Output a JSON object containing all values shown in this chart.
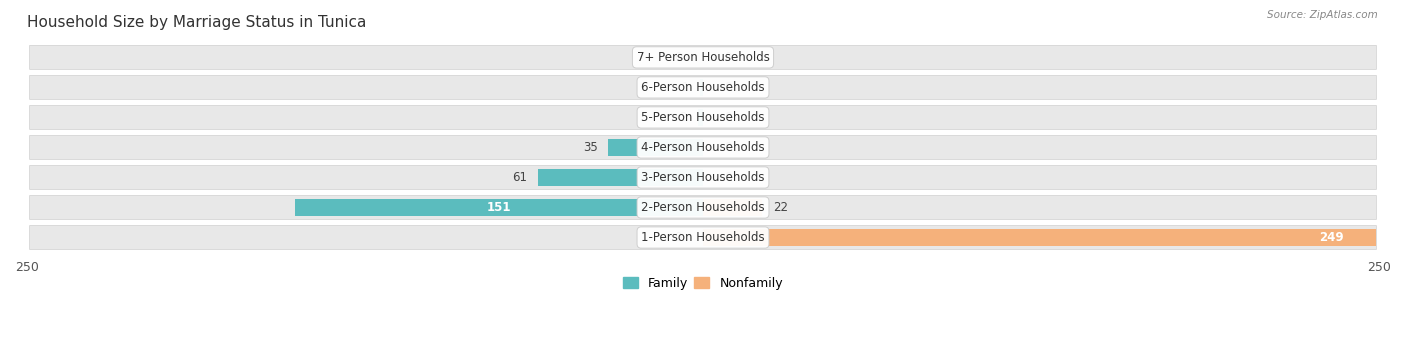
{
  "title": "Household Size by Marriage Status in Tunica",
  "source": "Source: ZipAtlas.com",
  "categories": [
    "7+ Person Households",
    "6-Person Households",
    "5-Person Households",
    "4-Person Households",
    "3-Person Households",
    "2-Person Households",
    "1-Person Households"
  ],
  "family": [
    0,
    1,
    2,
    35,
    61,
    151,
    0
  ],
  "nonfamily": [
    0,
    0,
    0,
    0,
    0,
    22,
    249
  ],
  "family_color": "#5bbcbe",
  "nonfamily_color": "#f5b17b",
  "xlim": [
    -250,
    250
  ],
  "bar_height": 0.55,
  "pill_color": "#e8e8e8",
  "label_fontsize": 9,
  "title_fontsize": 11,
  "value_fontsize": 8.5
}
